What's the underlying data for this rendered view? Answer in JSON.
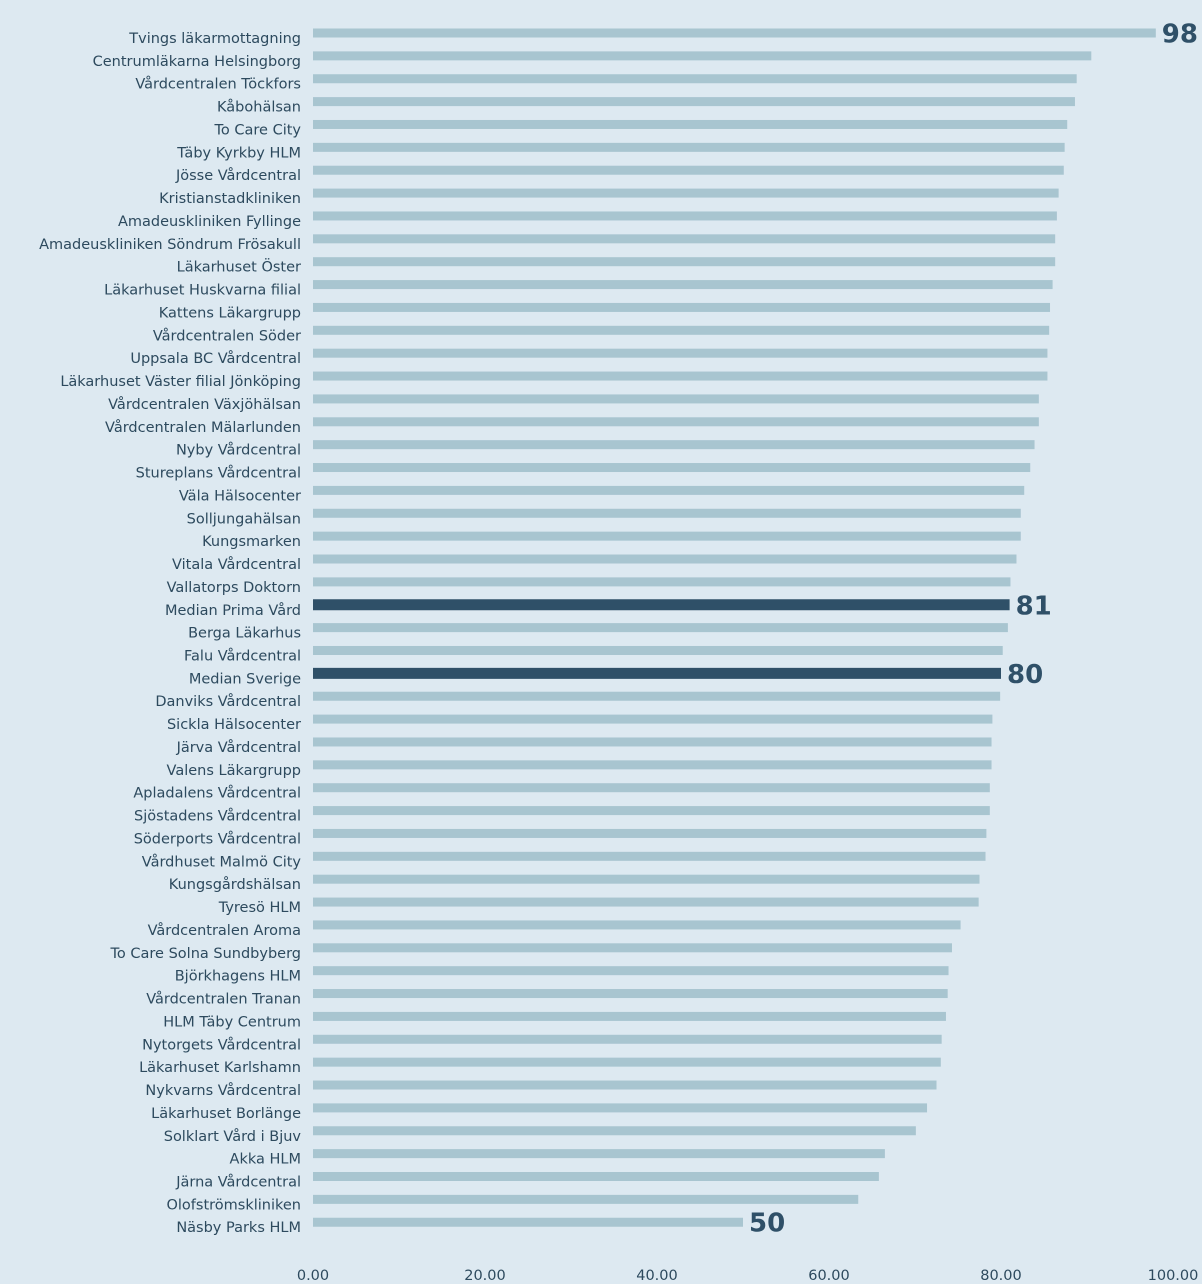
{
  "chart_data": {
    "type": "bar",
    "orientation": "horizontal",
    "categories": [
      "Tvings läkarmottagning",
      "Centrumläkarna Helsingborg",
      "Vårdcentralen Töckfors",
      "Kåbohälsan",
      "To Care City",
      "Täby Kyrkby HLM",
      "Jösse Vårdcentral",
      "Kristianstadkliniken",
      "Amadeuskliniken Fyllinge",
      "Amadeuskliniken Söndrum Frösakull",
      "Läkarhuset Öster",
      "Läkarhuset Huskvarna filial",
      "Kattens Läkargrupp",
      "Vårdcentralen Söder",
      "Uppsala BC Vårdcentral",
      "Läkarhuset Väster filial Jönköping",
      "Vårdcentralen Växjöhälsan",
      "Vårdcentralen Mälarlunden",
      "Nyby Vårdcentral",
      "Stureplans Vårdcentral",
      "Väla Hälsocenter",
      "Solljungahälsan",
      "Kungsmarken",
      "Vitala Vårdcentral",
      "Vallatorps Doktorn",
      "Median Prima Vård",
      "Berga Läkarhus",
      "Falu Vårdcentral",
      "Median Sverige",
      "Danviks Vårdcentral",
      "Sickla Hälsocenter",
      "Järva Vårdcentral",
      "Valens Läkargrupp",
      "Apladalens Vårdcentral",
      "Sjöstadens Vårdcentral",
      "Söderports Vårdcentral",
      "Vårdhuset Malmö City",
      "Kungsgårdshälsan",
      "Tyresö HLM",
      "Vårdcentralen Aroma",
      "To Care Solna Sundbyberg",
      "Björkhagens HLM",
      "Vårdcentralen Tranan",
      "HLM Täby Centrum",
      "Nytorgets Vårdcentral",
      "Läkarhuset Karlshamn",
      "Nykvarns Vårdcentral",
      "Läkarhuset Borlänge",
      "Solklart Vård i Bjuv",
      "Akka HLM",
      "Järna Vårdcentral",
      "Olofströmskliniken",
      "Näsby Parks HLM"
    ],
    "values": [
      98,
      90.5,
      88.8,
      88.6,
      87.7,
      87.4,
      87.3,
      86.7,
      86.5,
      86.3,
      86.3,
      86.0,
      85.7,
      85.6,
      85.4,
      85.4,
      84.4,
      84.4,
      83.9,
      83.4,
      82.7,
      82.3,
      82.3,
      81.8,
      81.1,
      81,
      80.8,
      80.2,
      80,
      79.9,
      79.0,
      78.9,
      78.9,
      78.7,
      78.7,
      78.3,
      78.2,
      77.5,
      77.4,
      75.3,
      74.3,
      73.9,
      73.8,
      73.6,
      73.1,
      73.0,
      72.5,
      71.4,
      70.1,
      66.5,
      65.8,
      63.4,
      50
    ],
    "color": "#a8c5d0",
    "highlight_color": "#2f5068",
    "highlight": [
      false,
      false,
      false,
      false,
      false,
      false,
      false,
      false,
      false,
      false,
      false,
      false,
      false,
      false,
      false,
      false,
      false,
      false,
      false,
      false,
      false,
      false,
      false,
      false,
      false,
      true,
      false,
      false,
      true,
      false,
      false,
      false,
      false,
      false,
      false,
      false,
      false,
      false,
      false,
      false,
      false,
      false,
      false,
      false,
      false,
      false,
      false,
      false,
      false,
      false,
      false,
      false,
      false
    ],
    "xlim": [
      0,
      100
    ],
    "xticks": [
      {
        "value": 0,
        "label": "0.00"
      },
      {
        "value": 20,
        "label": "20.00"
      },
      {
        "value": 40,
        "label": "40.00"
      },
      {
        "value": 60,
        "label": "60.00"
      },
      {
        "value": 80,
        "label": "80.00"
      },
      {
        "value": 100,
        "label": "100.00"
      }
    ],
    "grid": false
  }
}
